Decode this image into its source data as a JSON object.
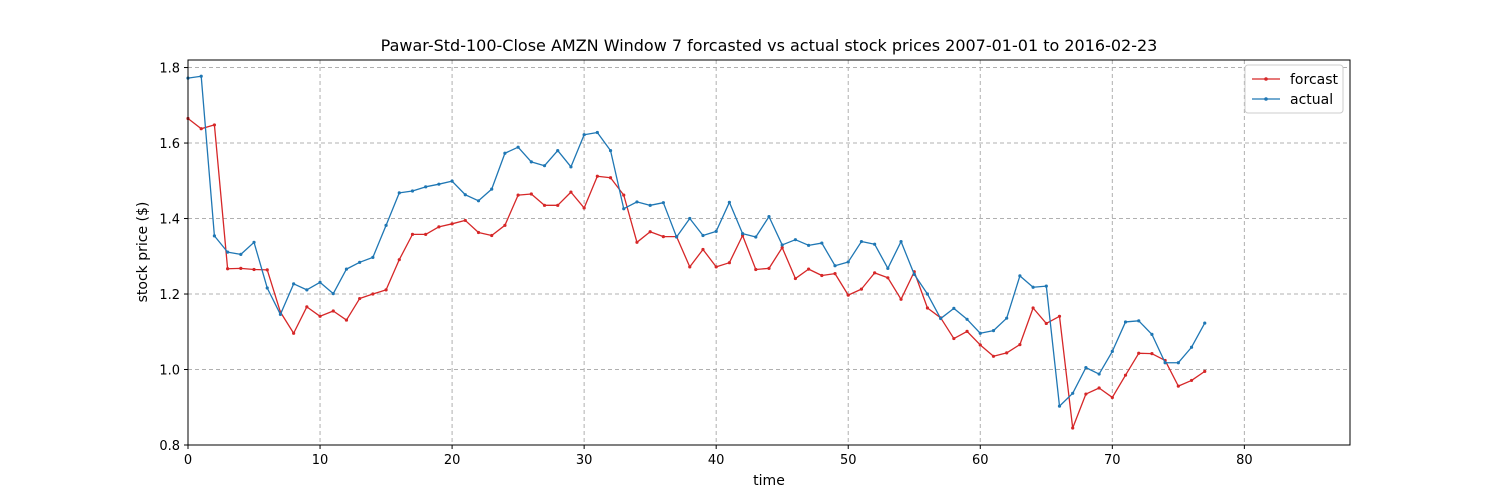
{
  "chart_data": {
    "type": "line",
    "title": "Pawar-Std-100-Close AMZN Window 7 forcasted vs actual stock prices 2007-01-01 to 2016-02-23",
    "xlabel": "time",
    "ylabel": "stock price ($)",
    "xlim": [
      0,
      88
    ],
    "ylim": [
      0.8,
      1.82
    ],
    "xticks": [
      0,
      10,
      20,
      30,
      40,
      50,
      60,
      70,
      80
    ],
    "yticks": [
      0.8,
      1.0,
      1.2,
      1.4,
      1.6,
      1.8
    ],
    "xtick_labels": [
      "0",
      "10",
      "20",
      "30",
      "40",
      "50",
      "60",
      "70",
      "80"
    ],
    "ytick_labels": [
      "0.8",
      "1.0",
      "1.2",
      "1.4",
      "1.6",
      "1.8"
    ],
    "grid": true,
    "legend_position": "top-right",
    "series": [
      {
        "name": "forcast",
        "color": "#d62728",
        "values": [
          1.665,
          1.638,
          1.648,
          1.267,
          1.268,
          1.265,
          1.264,
          1.152,
          1.096,
          1.166,
          1.141,
          1.155,
          1.131,
          1.188,
          1.2,
          1.211,
          1.291,
          1.358,
          1.358,
          1.378,
          1.386,
          1.395,
          1.363,
          1.355,
          1.382,
          1.462,
          1.465,
          1.435,
          1.435,
          1.47,
          1.428,
          1.512,
          1.508,
          1.462,
          1.337,
          1.365,
          1.352,
          1.352,
          1.272,
          1.318,
          1.272,
          1.283,
          1.355,
          1.265,
          1.268,
          1.323,
          1.241,
          1.266,
          1.249,
          1.254,
          1.197,
          1.213,
          1.256,
          1.243,
          1.186,
          1.259,
          1.163,
          1.137,
          1.082,
          1.101,
          1.065,
          1.035,
          1.044,
          1.066,
          1.163,
          1.122,
          1.141,
          0.845,
          0.935,
          0.951,
          0.926,
          0.985,
          1.043,
          1.042,
          1.024,
          0.956,
          0.971,
          0.995
        ]
      },
      {
        "name": "actual",
        "color": "#1f77b4",
        "values": [
          1.772,
          1.777,
          1.354,
          1.311,
          1.305,
          1.337,
          1.216,
          1.146,
          1.227,
          1.211,
          1.231,
          1.201,
          1.266,
          1.284,
          1.297,
          1.382,
          1.468,
          1.473,
          1.484,
          1.491,
          1.499,
          1.463,
          1.447,
          1.478,
          1.573,
          1.589,
          1.55,
          1.54,
          1.58,
          1.537,
          1.622,
          1.628,
          1.58,
          1.426,
          1.444,
          1.435,
          1.442,
          1.351,
          1.4,
          1.355,
          1.366,
          1.443,
          1.36,
          1.351,
          1.405,
          1.33,
          1.344,
          1.329,
          1.335,
          1.275,
          1.285,
          1.339,
          1.332,
          1.268,
          1.339,
          1.252,
          1.2,
          1.135,
          1.162,
          1.133,
          1.096,
          1.103,
          1.136,
          1.248,
          1.218,
          1.221,
          0.903,
          0.937,
          1.005,
          0.988,
          1.048,
          1.126,
          1.129,
          1.093,
          1.018,
          1.018,
          1.059,
          1.123
        ]
      }
    ]
  }
}
